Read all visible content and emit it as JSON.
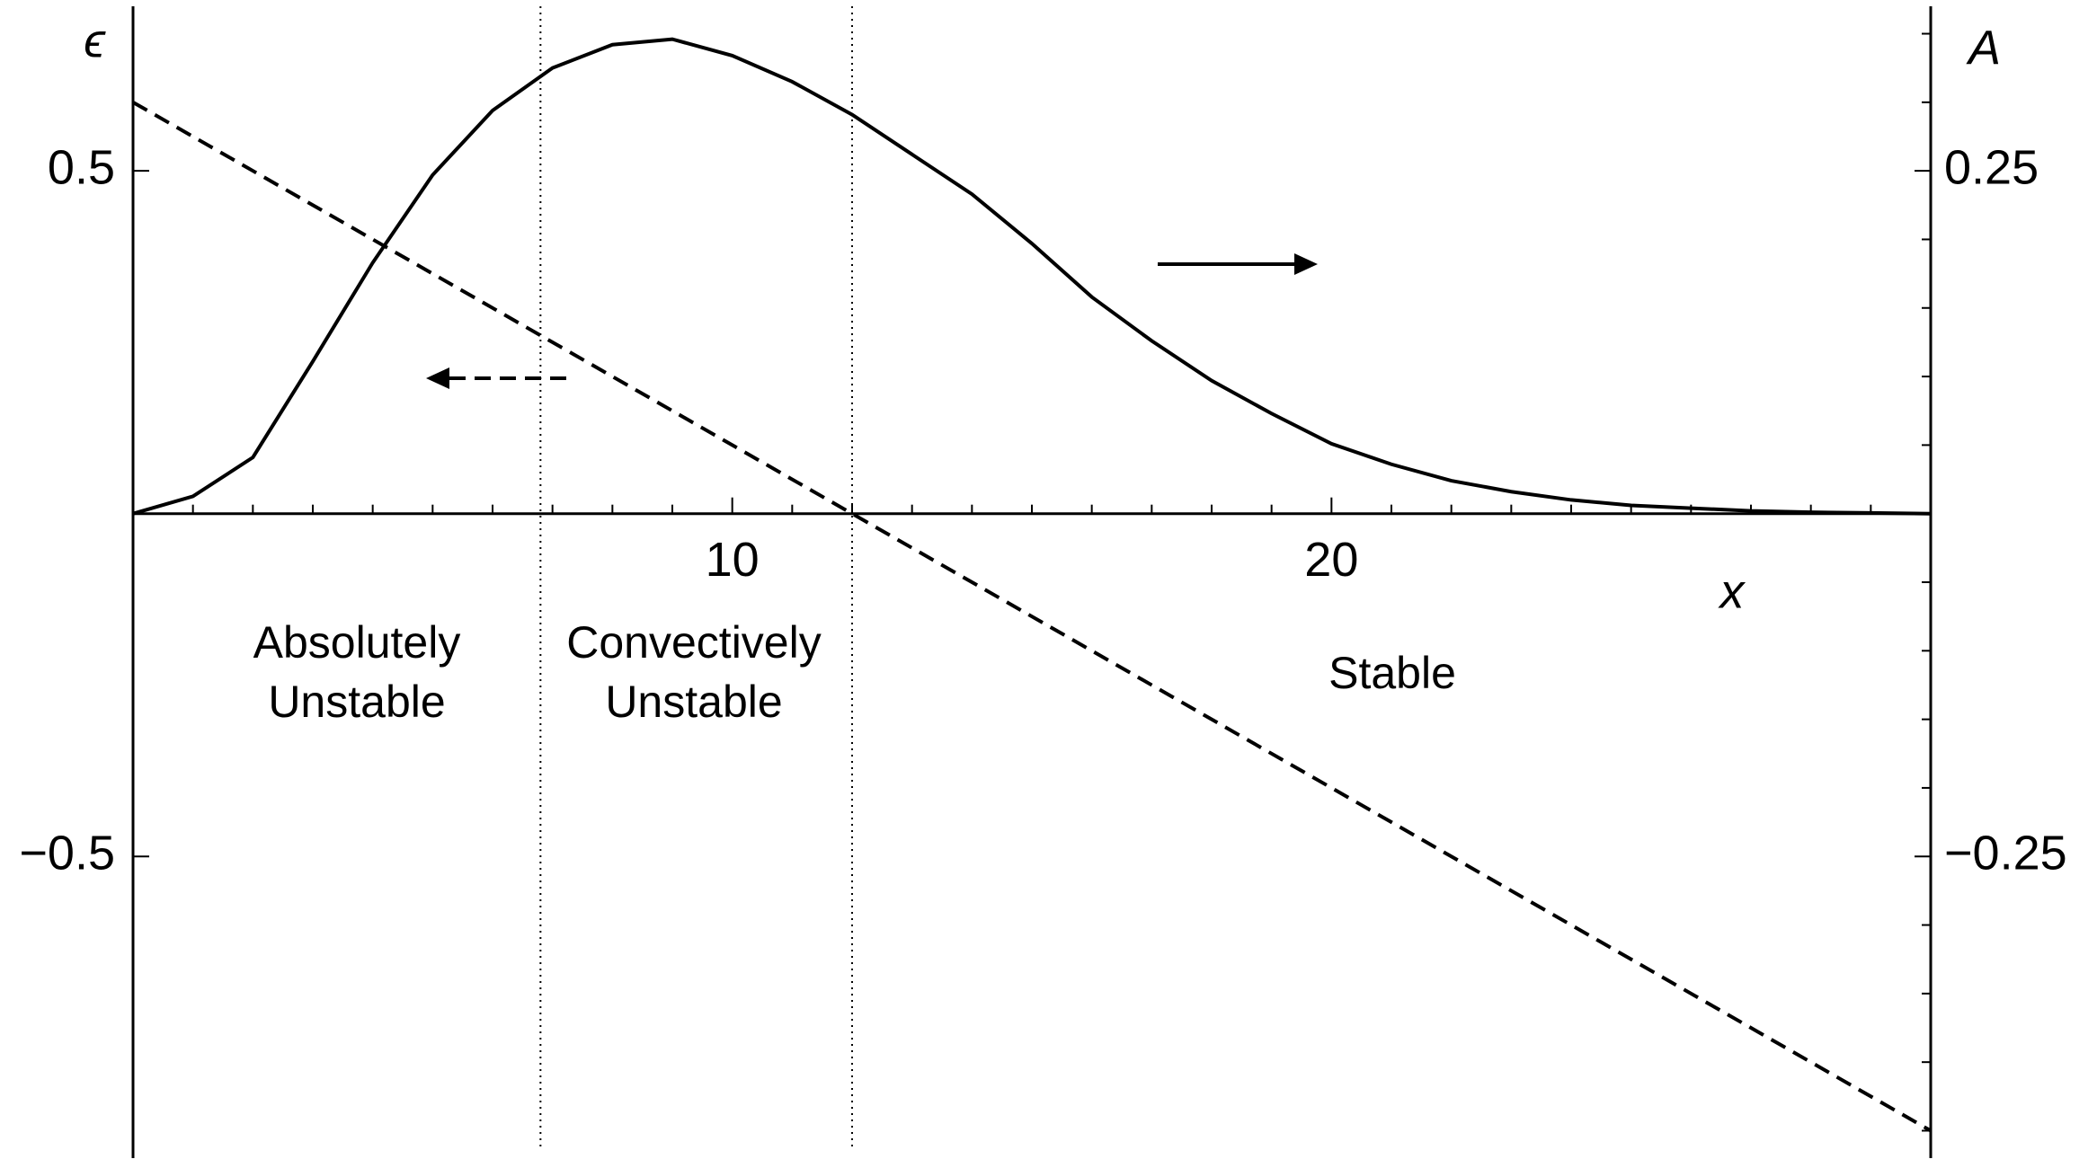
{
  "chart_data": {
    "type": "line",
    "xlabel": "x",
    "ylabel": "ϵ",
    "y2label": "A",
    "xlim": [
      0,
      30
    ],
    "xticks": [
      10,
      20
    ],
    "xminorticks": [
      1,
      2,
      3,
      4,
      5,
      6,
      7,
      8,
      9,
      11,
      12,
      13,
      14,
      15,
      16,
      17,
      18,
      19,
      21,
      22,
      23,
      24,
      25,
      26,
      27,
      28,
      29
    ],
    "ylim": [
      -0.94,
      0.74
    ],
    "yticks": [
      {
        "value": -0.5,
        "label": "−0.5"
      },
      0.5
    ],
    "y2lim": [
      -0.47,
      0.37
    ],
    "y2ticks": [
      {
        "value": -0.25,
        "label": "−0.25"
      },
      0.25
    ],
    "y2minorticks": [
      -0.45,
      -0.4,
      -0.35,
      -0.3,
      -0.2,
      -0.15,
      -0.1,
      -0.05,
      0.05,
      0.1,
      0.15,
      0.2,
      0.3,
      0.35
    ],
    "series": [
      {
        "x": [
          0,
          30
        ],
        "values": [
          0.6,
          -0.9
        ],
        "color": "#000000",
        "dash": "dashed"
      },
      {
        "x": [
          0,
          1,
          2,
          3,
          4,
          5,
          6,
          7,
          8,
          9,
          10,
          11,
          12,
          13,
          14,
          15,
          16,
          17,
          18,
          19,
          20,
          21,
          22,
          23,
          24,
          25,
          26,
          27,
          28,
          29,
          30
        ],
        "values": [
          0,
          0.0126,
          0.041,
          0.111,
          0.183,
          0.247,
          0.294,
          0.325,
          0.342,
          0.346,
          0.334,
          0.315,
          0.291,
          0.262,
          0.233,
          0.197,
          0.158,
          0.126,
          0.097,
          0.073,
          0.051,
          0.036,
          0.024,
          0.016,
          0.01,
          0.006,
          0.004,
          0.002,
          0.001,
          0.0005,
          0
        ],
        "color": "#000000",
        "axis": "y2"
      }
    ],
    "boundaries": [
      6.8,
      12
    ],
    "annotations": [
      [
        "Absolutely",
        "Unstable"
      ],
      [
        "Convectively",
        "Unstable"
      ],
      [
        "Stable"
      ]
    ]
  }
}
